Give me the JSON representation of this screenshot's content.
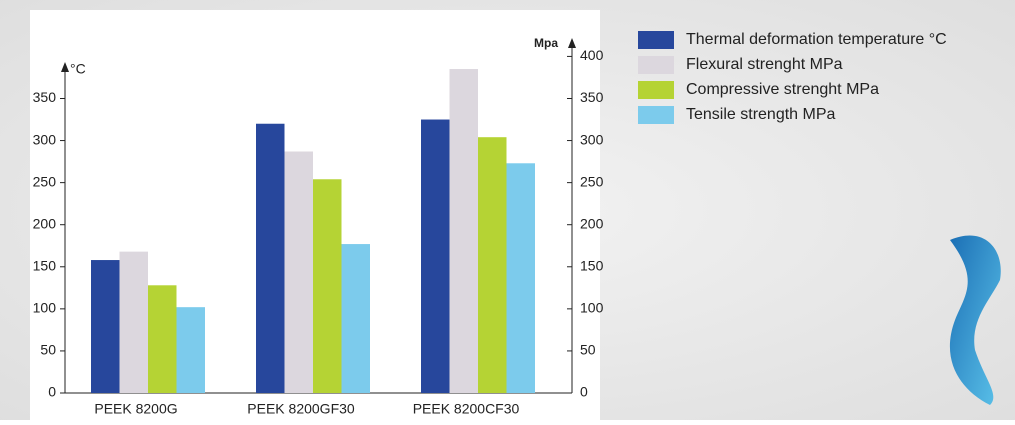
{
  "chart_data": {
    "type": "bar",
    "y_label": "°C",
    "y2_label": "Mpa",
    "categories": [
      "PEEK 8200G",
      "PEEK 8200GF30",
      "PEEK 8200CF30"
    ],
    "series": [
      {
        "name": "Thermal deformation temperature °C",
        "color": "#27479c",
        "axis": "y",
        "values": [
          158,
          320,
          325
        ]
      },
      {
        "name": "Flexural strenght MPa",
        "color": "#dcd7de",
        "axis": "y2",
        "values": [
          168,
          287,
          385
        ]
      },
      {
        "name": "Compressive strenght MPa",
        "color": "#b5d334",
        "axis": "y2",
        "values": [
          128,
          254,
          304
        ]
      },
      {
        "name": "Tensile strength MPa",
        "color": "#7ccbec",
        "axis": "y2",
        "values": [
          102,
          177,
          273
        ]
      }
    ],
    "ylim": [
      0,
      410
    ],
    "yticks": [
      0,
      50,
      100,
      150,
      200,
      250,
      300,
      350
    ],
    "y2lim": [
      0,
      410
    ],
    "y2ticks": [
      0,
      50,
      100,
      150,
      200,
      250,
      300,
      350,
      400
    ]
  }
}
